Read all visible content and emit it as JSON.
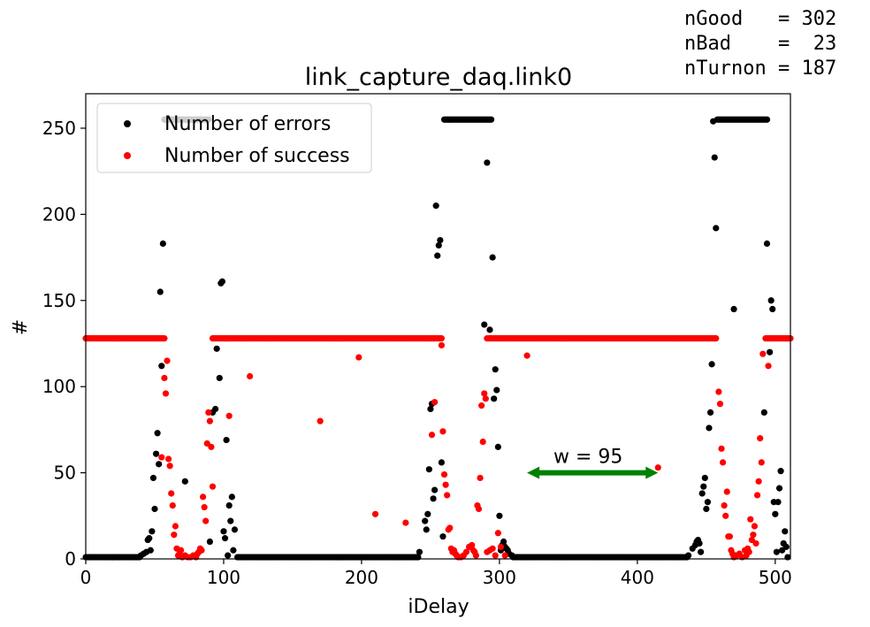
{
  "stats": {
    "line1": "nGood   = 302",
    "line2": "nBad    =  23",
    "line3": "nTurnon = 187"
  },
  "chart_data": {
    "type": "scatter",
    "title": "link_capture_daq.link0",
    "xlabel": "iDelay",
    "ylabel": "#",
    "xlim": [
      0,
      511
    ],
    "ylim": [
      0,
      270
    ],
    "xticks": [
      0,
      100,
      200,
      300,
      400,
      500
    ],
    "yticks": [
      0,
      50,
      100,
      150,
      200,
      250
    ],
    "grid": false,
    "legend_position": "top-left",
    "series": [
      {
        "name": "Number of errors",
        "color": "#000000",
        "points": [
          [
            40,
            2
          ],
          [
            42,
            3
          ],
          [
            44,
            4
          ],
          [
            45,
            11
          ],
          [
            46,
            12
          ],
          [
            47,
            5
          ],
          [
            48,
            16
          ],
          [
            49,
            47
          ],
          [
            50,
            29
          ],
          [
            51,
            61
          ],
          [
            52,
            73
          ],
          [
            53,
            55
          ],
          [
            54,
            155
          ],
          [
            55,
            112
          ],
          [
            56,
            183
          ],
          [
            72,
            45
          ],
          [
            90,
            10
          ],
          [
            92,
            85
          ],
          [
            94,
            87
          ],
          [
            95,
            122
          ],
          [
            97,
            105
          ],
          [
            98,
            160
          ],
          [
            99,
            161
          ],
          [
            100,
            16
          ],
          [
            101,
            12
          ],
          [
            102,
            69
          ],
          [
            103,
            2
          ],
          [
            104,
            31
          ],
          [
            105,
            22
          ],
          [
            106,
            36
          ],
          [
            107,
            5
          ],
          [
            108,
            17
          ],
          [
            242,
            4
          ],
          [
            246,
            22
          ],
          [
            247,
            17
          ],
          [
            248,
            26
          ],
          [
            249,
            52
          ],
          [
            250,
            87
          ],
          [
            251,
            90
          ],
          [
            252,
            35
          ],
          [
            253,
            40
          ],
          [
            254,
            205
          ],
          [
            255,
            176
          ],
          [
            256,
            182
          ],
          [
            257,
            185
          ],
          [
            258,
            56
          ],
          [
            259,
            13
          ],
          [
            289,
            136
          ],
          [
            291,
            230
          ],
          [
            293,
            133
          ],
          [
            295,
            175
          ],
          [
            296,
            93
          ],
          [
            297,
            110
          ],
          [
            298,
            98
          ],
          [
            299,
            65
          ],
          [
            300,
            25
          ],
          [
            301,
            5
          ],
          [
            302,
            8
          ],
          [
            303,
            10
          ],
          [
            304,
            7
          ],
          [
            305,
            6
          ],
          [
            306,
            5
          ],
          [
            307,
            3
          ],
          [
            309,
            2
          ],
          [
            437,
            2
          ],
          [
            440,
            6
          ],
          [
            442,
            8
          ],
          [
            443,
            10
          ],
          [
            444,
            11
          ],
          [
            445,
            9
          ],
          [
            446,
            4
          ],
          [
            447,
            38
          ],
          [
            448,
            42
          ],
          [
            449,
            47
          ],
          [
            450,
            29
          ],
          [
            451,
            33
          ],
          [
            452,
            76
          ],
          [
            453,
            85
          ],
          [
            454,
            113
          ],
          [
            455,
            254
          ],
          [
            456,
            233
          ],
          [
            457,
            192
          ],
          [
            470,
            145
          ],
          [
            492,
            85
          ],
          [
            494,
            183
          ],
          [
            496,
            120
          ],
          [
            497,
            150
          ],
          [
            498,
            145
          ],
          [
            499,
            33
          ],
          [
            500,
            26
          ],
          [
            501,
            4
          ],
          [
            502,
            33
          ],
          [
            503,
            41
          ],
          [
            504,
            51
          ],
          [
            505,
            5
          ],
          [
            506,
            9
          ],
          [
            507,
            16
          ],
          [
            508,
            7
          ],
          [
            509,
            1
          ]
        ],
        "flat_runs": [
          {
            "x_from": 0,
            "x_to": 39,
            "y": 1
          },
          {
            "x_from": 57,
            "x_to": 89,
            "y": 255
          },
          {
            "x_from": 110,
            "x_to": 241,
            "y": 1
          },
          {
            "x_from": 260,
            "x_to": 294,
            "y": 255
          },
          {
            "x_from": 310,
            "x_to": 436,
            "y": 1
          },
          {
            "x_from": 458,
            "x_to": 494,
            "y": 255
          }
        ]
      },
      {
        "name": "Number of success",
        "color": "#ff0000",
        "points": [
          [
            55,
            59
          ],
          [
            57,
            105
          ],
          [
            58,
            96
          ],
          [
            59,
            115
          ],
          [
            60,
            58
          ],
          [
            61,
            54
          ],
          [
            62,
            38
          ],
          [
            63,
            31
          ],
          [
            64,
            14
          ],
          [
            65,
            19
          ],
          [
            66,
            6
          ],
          [
            67,
            2
          ],
          [
            68,
            3
          ],
          [
            69,
            5
          ],
          [
            70,
            1
          ],
          [
            72,
            2
          ],
          [
            74,
            1
          ],
          [
            76,
            1
          ],
          [
            78,
            2
          ],
          [
            80,
            1
          ],
          [
            81,
            3
          ],
          [
            82,
            4
          ],
          [
            83,
            6
          ],
          [
            84,
            5
          ],
          [
            85,
            36
          ],
          [
            86,
            30
          ],
          [
            87,
            22
          ],
          [
            88,
            67
          ],
          [
            89,
            85
          ],
          [
            90,
            80
          ],
          [
            91,
            65
          ],
          [
            92,
            42
          ],
          [
            104,
            83
          ],
          [
            119,
            106
          ],
          [
            170,
            80
          ],
          [
            198,
            117
          ],
          [
            210,
            26
          ],
          [
            232,
            21
          ],
          [
            251,
            72
          ],
          [
            253,
            91
          ],
          [
            258,
            124
          ],
          [
            259,
            74
          ],
          [
            260,
            49
          ],
          [
            261,
            43
          ],
          [
            262,
            37
          ],
          [
            263,
            17
          ],
          [
            264,
            18
          ],
          [
            265,
            6
          ],
          [
            266,
            4
          ],
          [
            267,
            5
          ],
          [
            268,
            3
          ],
          [
            269,
            2
          ],
          [
            270,
            1
          ],
          [
            272,
            1
          ],
          [
            274,
            2
          ],
          [
            276,
            4
          ],
          [
            278,
            7
          ],
          [
            280,
            8
          ],
          [
            281,
            5
          ],
          [
            282,
            4
          ],
          [
            283,
            2
          ],
          [
            284,
            31
          ],
          [
            285,
            29
          ],
          [
            286,
            47
          ],
          [
            287,
            89
          ],
          [
            288,
            68
          ],
          [
            289,
            96
          ],
          [
            290,
            93
          ],
          [
            291,
            4
          ],
          [
            293,
            5
          ],
          [
            295,
            6
          ],
          [
            297,
            2
          ],
          [
            299,
            15
          ],
          [
            301,
            7
          ],
          [
            304,
            2
          ],
          [
            320,
            118
          ],
          [
            415,
            53
          ],
          [
            459,
            97
          ],
          [
            460,
            90
          ],
          [
            461,
            64
          ],
          [
            462,
            56
          ],
          [
            463,
            31
          ],
          [
            464,
            25
          ],
          [
            465,
            39
          ],
          [
            466,
            13
          ],
          [
            467,
            13
          ],
          [
            468,
            5
          ],
          [
            469,
            3
          ],
          [
            470,
            1
          ],
          [
            472,
            2
          ],
          [
            474,
            3
          ],
          [
            476,
            1
          ],
          [
            478,
            5
          ],
          [
            479,
            2
          ],
          [
            480,
            6
          ],
          [
            481,
            4
          ],
          [
            482,
            23
          ],
          [
            483,
            11
          ],
          [
            484,
            14
          ],
          [
            485,
            19
          ],
          [
            486,
            9
          ],
          [
            487,
            37
          ],
          [
            488,
            45
          ],
          [
            489,
            70
          ],
          [
            490,
            56
          ],
          [
            491,
            119
          ],
          [
            495,
            112
          ]
        ],
        "flat_runs": [
          {
            "x_from": 0,
            "x_to": 57,
            "y": 128
          },
          {
            "x_from": 92,
            "x_to": 258,
            "y": 128
          },
          {
            "x_from": 291,
            "x_to": 457,
            "y": 128
          },
          {
            "x_from": 493,
            "x_to": 511,
            "y": 128
          }
        ]
      }
    ],
    "annotation": {
      "text": "w = 95",
      "arrow_x": [
        320,
        415
      ],
      "arrow_y": 50,
      "color": "#008000"
    }
  }
}
